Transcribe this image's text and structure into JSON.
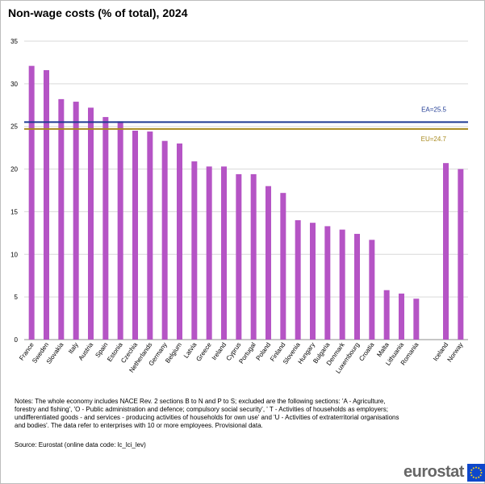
{
  "title": "Non-wage costs (% of total), 2024",
  "chart_data": {
    "type": "bar",
    "title": "Non-wage costs (% of total), 2024",
    "categories": [
      "France",
      "Sweden",
      "Slovakia",
      "Italy",
      "Austria",
      "Spain",
      "Estonia",
      "Czechia",
      "Netherlands",
      "Germany",
      "Belgium",
      "Latvia",
      "Greece",
      "Ireland",
      "Cyprus",
      "Portugal",
      "Poland",
      "Finland",
      "Slovenia",
      "Hungary",
      "Bulgaria",
      "Denmark",
      "Luxembourg",
      "Croatia",
      "Malta",
      "Lithuania",
      "Romania",
      "",
      "Iceland",
      "Norway"
    ],
    "values": [
      32.1,
      31.6,
      28.2,
      27.9,
      27.2,
      26.1,
      25.6,
      24.5,
      24.4,
      23.3,
      23.0,
      20.9,
      20.3,
      20.3,
      19.4,
      19.4,
      18.0,
      17.2,
      14.0,
      13.7,
      13.3,
      12.9,
      12.4,
      11.7,
      5.8,
      5.4,
      4.8,
      null,
      20.7,
      20.0
    ],
    "ylim": [
      0,
      35
    ],
    "yticks": [
      0,
      5,
      10,
      15,
      20,
      25,
      30,
      35
    ],
    "xlabel": "",
    "ylabel": "",
    "grid": true,
    "bar_color": "#b554c5",
    "reference_lines": [
      {
        "name": "EA",
        "label": "EA=25.5",
        "value": 25.5,
        "color": "#1f3a93"
      },
      {
        "name": "EU",
        "label": "EU=24.7",
        "value": 24.7,
        "color": "#a88a1f"
      }
    ]
  },
  "notes": "Notes: The whole economy includes NACE Rev. 2 sections B to N and P to S; excluded are the following sections: 'A - Agriculture, forestry and fishing', 'O - Public administration and defence; compulsory social security', ' T - Activities of households as employers; undifferentiated goods - and services - producing activities of households for own use' and 'U - Activities of extraterritorial organisations and bodies'. The data refer to enterprises with 10 or more employees. Provisional data.",
  "source": "Source: Eurostat (online data code: lc_lci_lev)",
  "logo": {
    "text": "eurostat",
    "flag_color": "#0e47cb",
    "star_color": "#ffd617"
  }
}
